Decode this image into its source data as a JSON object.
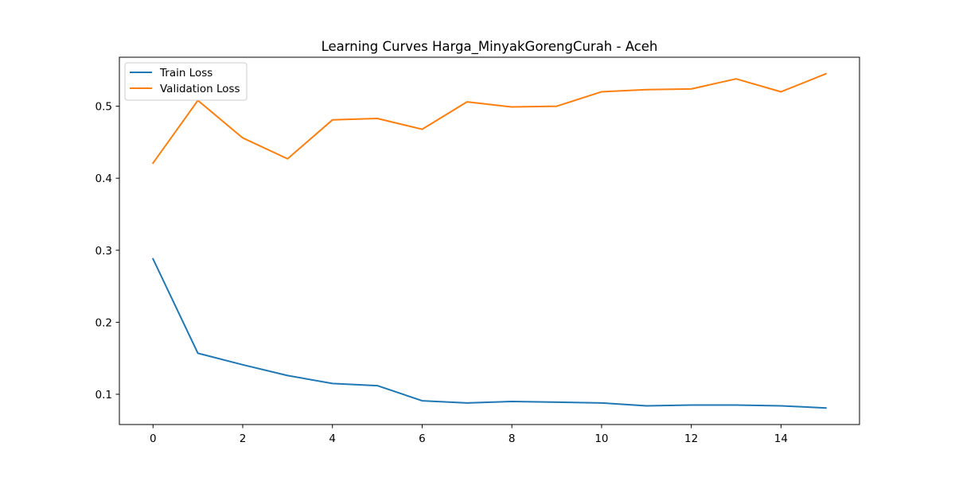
{
  "chart_data": {
    "type": "line",
    "title": "Learning Curves Harga_MinyakGorengCurah - Aceh",
    "xlabel": "",
    "ylabel": "",
    "x": [
      0,
      1,
      2,
      3,
      4,
      5,
      6,
      7,
      8,
      9,
      10,
      11,
      12,
      13,
      14,
      15
    ],
    "xlim": [
      -0.75,
      15.75
    ],
    "ylim": [
      0.058,
      0.568
    ],
    "xticks": [
      0,
      2,
      4,
      6,
      8,
      10,
      12,
      14
    ],
    "yticks": [
      0.1,
      0.2,
      0.3,
      0.4,
      0.5
    ],
    "xtick_labels": [
      "0",
      "2",
      "4",
      "6",
      "8",
      "10",
      "12",
      "14"
    ],
    "ytick_labels": [
      "0.1",
      "0.2",
      "0.3",
      "0.4",
      "0.5"
    ],
    "grid": false,
    "legend_position": "top-left",
    "series": [
      {
        "name": "Train Loss",
        "color": "#1f77b4",
        "values": [
          0.288,
          0.157,
          0.141,
          0.126,
          0.115,
          0.112,
          0.091,
          0.088,
          0.09,
          0.089,
          0.088,
          0.084,
          0.085,
          0.085,
          0.084,
          0.081
        ]
      },
      {
        "name": "Validation Loss",
        "color": "#ff7f0e",
        "values": [
          0.421,
          0.508,
          0.456,
          0.427,
          0.481,
          0.483,
          0.468,
          0.506,
          0.499,
          0.5,
          0.52,
          0.523,
          0.524,
          0.538,
          0.52,
          0.545
        ]
      }
    ]
  }
}
